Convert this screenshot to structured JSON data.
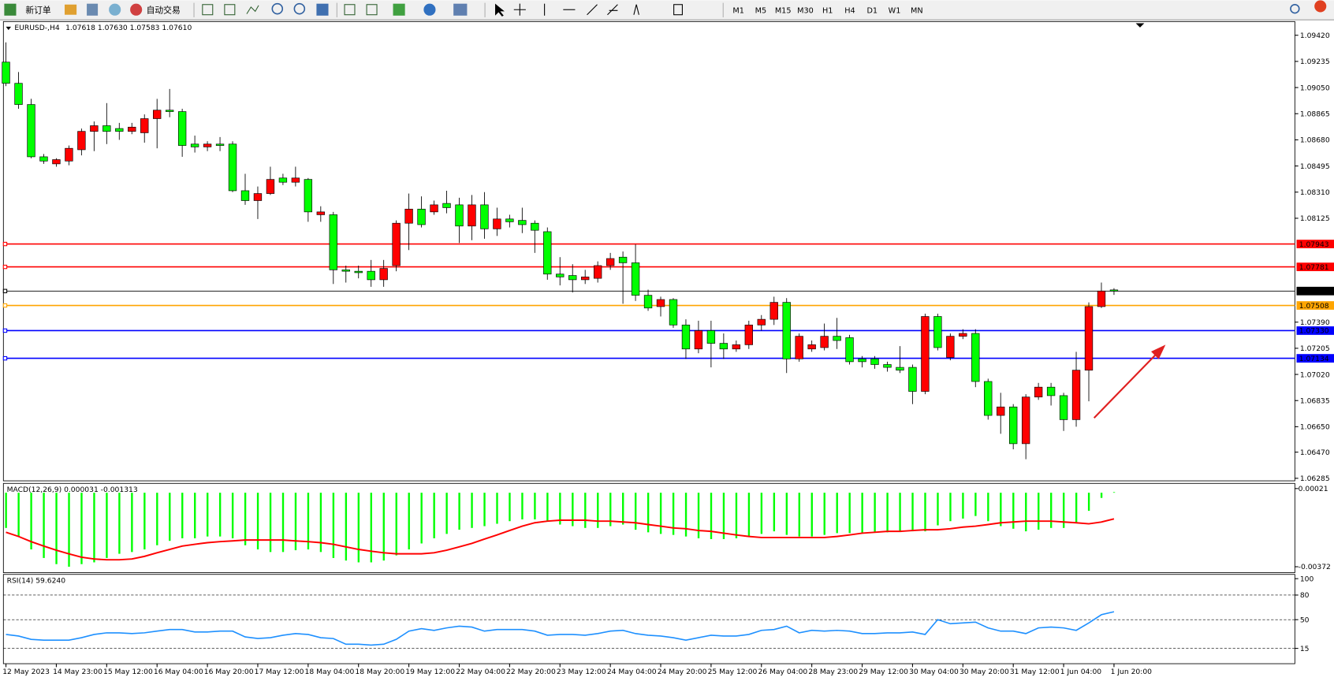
{
  "toolbar": {
    "new_order": "新订单",
    "auto_trade": "自动交易",
    "timeframes": [
      "M1",
      "M5",
      "M15",
      "M30",
      "H1",
      "H4",
      "D1",
      "W1",
      "MN"
    ]
  },
  "chart_data": [
    {
      "type": "candlestick",
      "title": "EURUSD-,H4",
      "ohlc": "1.07618 1.07630 1.07583 1.07610",
      "up_color": "#ff0000",
      "down_color": "#00ff00",
      "categories": [
        "12 May 2023",
        null,
        null,
        null,
        "14 May 23:00",
        null,
        null,
        null,
        "15 May 12:00",
        null,
        null,
        null,
        "16 May 04:00",
        null,
        null,
        null,
        "16 May 20:00",
        null,
        null,
        null,
        "17 May 12:00",
        null,
        null,
        null,
        "18 May 04:00",
        null,
        null,
        null,
        "18 May 20:00",
        null,
        null,
        null,
        "19 May 12:00",
        null,
        null,
        null,
        "22 May 04:00",
        null,
        null,
        null,
        "22 May 20:00",
        null,
        null,
        null,
        "23 May 12:00",
        null,
        null,
        null,
        "24 May 04:00",
        null,
        null,
        null,
        "24 May 20:00",
        null,
        null,
        null,
        "25 May 12:00",
        null,
        null,
        null,
        "26 May 04:00",
        null,
        null,
        null,
        "28 May 23:00",
        null,
        null,
        null,
        "29 May 12:00",
        null,
        null,
        null,
        "30 May 04:00",
        null,
        null,
        null,
        "30 May 20:00",
        null,
        null,
        null,
        "31 May 12:00",
        null,
        null,
        null,
        "1 Jun 04:00",
        null,
        null,
        null,
        "1 Jun 20:00"
      ],
      "open": [
        1.0923,
        1.0908,
        1.0893,
        1.0856,
        1.0851,
        1.0853,
        1.0861,
        1.0874,
        1.0878,
        1.0876,
        1.0874,
        1.0873,
        1.0883,
        1.0889,
        1.0888,
        1.0865,
        1.0863,
        1.0865,
        1.0865,
        1.0832,
        1.0825,
        1.083,
        1.0841,
        1.0838,
        1.084,
        1.0815,
        1.0815,
        1.0776,
        1.0775,
        1.0775,
        1.0769,
        1.0779,
        1.0809,
        1.0819,
        1.0817,
        1.0823,
        1.0822,
        1.0807,
        1.0822,
        1.0805,
        1.0812,
        1.0811,
        1.0809,
        1.0803,
        1.0773,
        1.0772,
        1.0769,
        1.077,
        1.0779,
        1.0785,
        1.0781,
        1.0758,
        1.075,
        1.0755,
        1.0737,
        1.072,
        1.0733,
        1.0724,
        1.072,
        1.0723,
        1.0737,
        1.0741,
        1.0753,
        1.0713,
        1.072,
        1.0721,
        1.0729,
        1.0728,
        1.0713,
        1.0713,
        1.0709,
        1.0707,
        1.0707,
        1.069,
        1.0743,
        1.0714,
        1.0729,
        1.0731,
        1.0697,
        1.0673,
        1.0679,
        1.0653,
        1.0686,
        1.0693,
        1.0687,
        1.067,
        1.0705,
        1.075,
        1.07618
      ],
      "high": [
        1.0937,
        1.0916,
        1.0897,
        1.0858,
        1.0855,
        1.0864,
        1.0876,
        1.0881,
        1.0894,
        1.088,
        1.088,
        1.0886,
        1.0897,
        1.0904,
        1.089,
        1.0871,
        1.0867,
        1.087,
        1.0867,
        1.0844,
        1.0835,
        1.0849,
        1.0844,
        1.0849,
        1.0841,
        1.0821,
        1.0817,
        1.0779,
        1.0779,
        1.0783,
        1.0783,
        1.0811,
        1.083,
        1.0828,
        1.0825,
        1.0832,
        1.0827,
        1.0829,
        1.0831,
        1.082,
        1.0815,
        1.082,
        1.0811,
        1.0806,
        1.0785,
        1.078,
        1.0776,
        1.0782,
        1.0788,
        1.0789,
        1.0794,
        1.0762,
        1.0757,
        1.0756,
        1.0741,
        1.074,
        1.074,
        1.0731,
        1.0726,
        1.074,
        1.0744,
        1.0757,
        1.0756,
        1.0731,
        1.0726,
        1.0738,
        1.0742,
        1.073,
        1.0715,
        1.0715,
        1.0711,
        1.0722,
        1.0709,
        1.0745,
        1.0745,
        1.0731,
        1.0734,
        1.0734,
        1.0699,
        1.0689,
        1.0681,
        1.0688,
        1.0696,
        1.0696,
        1.0689,
        1.0718,
        1.0753,
        1.0767,
        1.0763
      ],
      "low": [
        1.0906,
        1.089,
        1.0855,
        1.0851,
        1.0849,
        1.085,
        1.0857,
        1.086,
        1.0865,
        1.0868,
        1.0872,
        1.0866,
        1.0862,
        1.0884,
        1.0856,
        1.0859,
        1.086,
        1.086,
        1.0831,
        1.0822,
        1.0812,
        1.0829,
        1.0836,
        1.0835,
        1.081,
        1.081,
        1.0766,
        1.0767,
        1.077,
        1.0764,
        1.0764,
        1.0775,
        1.079,
        1.0806,
        1.0815,
        1.0816,
        1.0795,
        1.0797,
        1.0798,
        1.08,
        1.0806,
        1.0802,
        1.0788,
        1.0769,
        1.0765,
        1.076,
        1.0766,
        1.0767,
        1.0776,
        1.0752,
        1.0754,
        1.0747,
        1.0743,
        1.0735,
        1.0713,
        1.0717,
        1.0707,
        1.0713,
        1.0718,
        1.072,
        1.0733,
        1.0737,
        1.0703,
        1.0711,
        1.0718,
        1.0719,
        1.072,
        1.0709,
        1.0707,
        1.0706,
        1.0704,
        1.0703,
        1.0681,
        1.0688,
        1.0719,
        1.0712,
        1.0727,
        1.0693,
        1.067,
        1.066,
        1.0649,
        1.0642,
        1.0684,
        1.068,
        1.0662,
        1.0665,
        1.0683,
        1.0749,
        1.07583
      ],
      "close": [
        1.0908,
        1.0893,
        1.0856,
        1.0853,
        1.0854,
        1.0862,
        1.0874,
        1.0878,
        1.0874,
        1.0874,
        1.0877,
        1.0883,
        1.0889,
        1.0888,
        1.0864,
        1.0863,
        1.0865,
        1.0864,
        1.0832,
        1.0825,
        1.083,
        1.084,
        1.0838,
        1.0841,
        1.0817,
        1.0817,
        1.0776,
        1.0775,
        1.0774,
        1.0769,
        1.0777,
        1.0809,
        1.0819,
        1.0808,
        1.0822,
        1.082,
        1.0807,
        1.0822,
        1.0805,
        1.0812,
        1.081,
        1.0808,
        1.0804,
        1.0773,
        1.0771,
        1.0769,
        1.0771,
        1.0779,
        1.0784,
        1.0781,
        1.0758,
        1.0749,
        1.0755,
        1.0737,
        1.072,
        1.0733,
        1.0724,
        1.072,
        1.0723,
        1.0737,
        1.0741,
        1.0753,
        1.0713,
        1.0729,
        1.0723,
        1.0729,
        1.0726,
        1.0711,
        1.0711,
        1.0709,
        1.0707,
        1.0705,
        1.069,
        1.0743,
        1.0721,
        1.0729,
        1.0731,
        1.0697,
        1.0673,
        1.0679,
        1.0653,
        1.0686,
        1.0693,
        1.0687,
        1.067,
        1.0705,
        1.075,
        1.0761,
        1.0761
      ],
      "ylim": [
        1.06267,
        1.09517
      ],
      "yticks": [
        {
          "value": 1.0942,
          "label": "1.09420"
        },
        1.09235,
        {
          "value": 1.0905,
          "label": "1.09050"
        },
        1.08865,
        {
          "value": 1.0868,
          "label": "1.08680"
        },
        1.08495,
        {
          "value": 1.0831,
          "label": "1.08310"
        },
        1.08125,
        {
          "value": 1.0739,
          "label": "1.07390"
        },
        1.07205,
        {
          "value": 1.0702,
          "label": "1.07020"
        },
        1.06835,
        {
          "value": 1.0665,
          "label": "1.06650"
        },
        {
          "value": 1.0647,
          "label": "1.06470"
        },
        1.06285
      ],
      "levels": [
        {
          "value": 1.07943,
          "color": "#ff0000"
        },
        {
          "value": 1.07781,
          "color": "#ff0000"
        },
        {
          "value": 1.0761,
          "label": "1.07610",
          "color": "#000000"
        },
        {
          "value": 1.07508,
          "color": "#ffa500"
        },
        {
          "value": 1.0733,
          "label": "1.07330",
          "color": "#0000ff"
        },
        {
          "value": 1.07134,
          "color": "#0000ff"
        }
      ]
    },
    {
      "type": "macd",
      "title": "MACD(12,26,9) 0.000031 -0.001313",
      "color": "#00ff00",
      "signal_color": "#ff0000",
      "values": [
        -0.00177,
        -0.0022,
        -0.00285,
        -0.00328,
        -0.00359,
        -0.00372,
        -0.00359,
        -0.0035,
        -0.00328,
        -0.00307,
        -0.00298,
        -0.00285,
        -0.00264,
        -0.00242,
        -0.00229,
        -0.00229,
        -0.0022,
        -0.0022,
        -0.00229,
        -0.00264,
        -0.00285,
        -0.00298,
        -0.00298,
        -0.00289,
        -0.00285,
        -0.00298,
        -0.00328,
        -0.00341,
        -0.0035,
        -0.0035,
        -0.00341,
        -0.00315,
        -0.00285,
        -0.00255,
        -0.00229,
        -0.00207,
        -0.00186,
        -0.00177,
        -0.00168,
        -0.00156,
        -0.00143,
        -0.00134,
        -0.00134,
        -0.00143,
        -0.0016,
        -0.00168,
        -0.00177,
        -0.00177,
        -0.00168,
        -0.0016,
        -0.00186,
        -0.00199,
        -0.00207,
        -0.00212,
        -0.0022,
        -0.00229,
        -0.00233,
        -0.00233,
        -0.00229,
        -0.0022,
        -0.00207,
        -0.00194,
        -0.00212,
        -0.0022,
        -0.0022,
        -0.00212,
        -0.00203,
        -0.00203,
        -0.00203,
        -0.00199,
        -0.00199,
        -0.00194,
        -0.00194,
        -0.00194,
        -0.00164,
        -0.00143,
        -0.0013,
        -0.00117,
        -0.00143,
        -0.00168,
        -0.00181,
        -0.00194,
        -0.00186,
        -0.00177,
        -0.00177,
        -0.00151,
        -0.00091,
        -0.00026,
        3.1e-05
      ],
      "signal": [
        -0.00199,
        -0.0022,
        -0.00246,
        -0.00268,
        -0.00289,
        -0.00307,
        -0.00324,
        -0.00333,
        -0.00337,
        -0.00337,
        -0.00333,
        -0.0032,
        -0.00302,
        -0.00285,
        -0.00268,
        -0.00259,
        -0.00251,
        -0.00246,
        -0.00242,
        -0.00238,
        -0.00238,
        -0.00238,
        -0.00238,
        -0.00242,
        -0.00246,
        -0.00251,
        -0.00259,
        -0.00272,
        -0.00285,
        -0.00294,
        -0.00302,
        -0.00307,
        -0.00307,
        -0.00307,
        -0.00302,
        -0.00289,
        -0.00272,
        -0.00255,
        -0.00233,
        -0.00212,
        -0.0019,
        -0.00168,
        -0.00151,
        -0.00143,
        -0.00138,
        -0.00138,
        -0.00138,
        -0.00143,
        -0.00143,
        -0.00147,
        -0.00151,
        -0.0016,
        -0.00168,
        -0.00177,
        -0.00181,
        -0.0019,
        -0.00194,
        -0.00203,
        -0.00212,
        -0.0022,
        -0.00225,
        -0.00225,
        -0.00225,
        -0.00225,
        -0.00225,
        -0.00225,
        -0.0022,
        -0.00212,
        -0.00203,
        -0.00199,
        -0.00194,
        -0.00194,
        -0.0019,
        -0.00186,
        -0.00186,
        -0.00181,
        -0.00173,
        -0.00168,
        -0.0016,
        -0.00151,
        -0.00147,
        -0.00143,
        -0.00143,
        -0.00143,
        -0.00147,
        -0.00151,
        -0.00156,
        -0.00147,
        -0.001313
      ],
      "ylim": [
        -0.00402,
        0.00047
      ],
      "yticks": [
        0.00021,
        -0.00372
      ]
    },
    {
      "type": "line",
      "title": "RSI(14) 59.6240",
      "color": "#1e90ff",
      "values": [
        32,
        30,
        26,
        25,
        25,
        25,
        28,
        32,
        34,
        34,
        33,
        34,
        36,
        38,
        38,
        35,
        35,
        36,
        36,
        29,
        27,
        28,
        31,
        33,
        32,
        28,
        27,
        20,
        20,
        19,
        20,
        26,
        36,
        39,
        37,
        40,
        42,
        41,
        36,
        38,
        38,
        38,
        36,
        31,
        32,
        32,
        31,
        33,
        36,
        37,
        33,
        31,
        30,
        28,
        25,
        28,
        31,
        30,
        30,
        32,
        37,
        38,
        42,
        34,
        37,
        36,
        37,
        36,
        33,
        33,
        34,
        34,
        35,
        32,
        50,
        45,
        46,
        47,
        40,
        36,
        36,
        33,
        40,
        41,
        40,
        37,
        46,
        56,
        59.624
      ],
      "ylim": [
        -3.7,
        105.2
      ],
      "yticks": [
        100,
        80,
        50,
        15
      ],
      "levels": [
        80,
        50,
        15
      ]
    }
  ]
}
